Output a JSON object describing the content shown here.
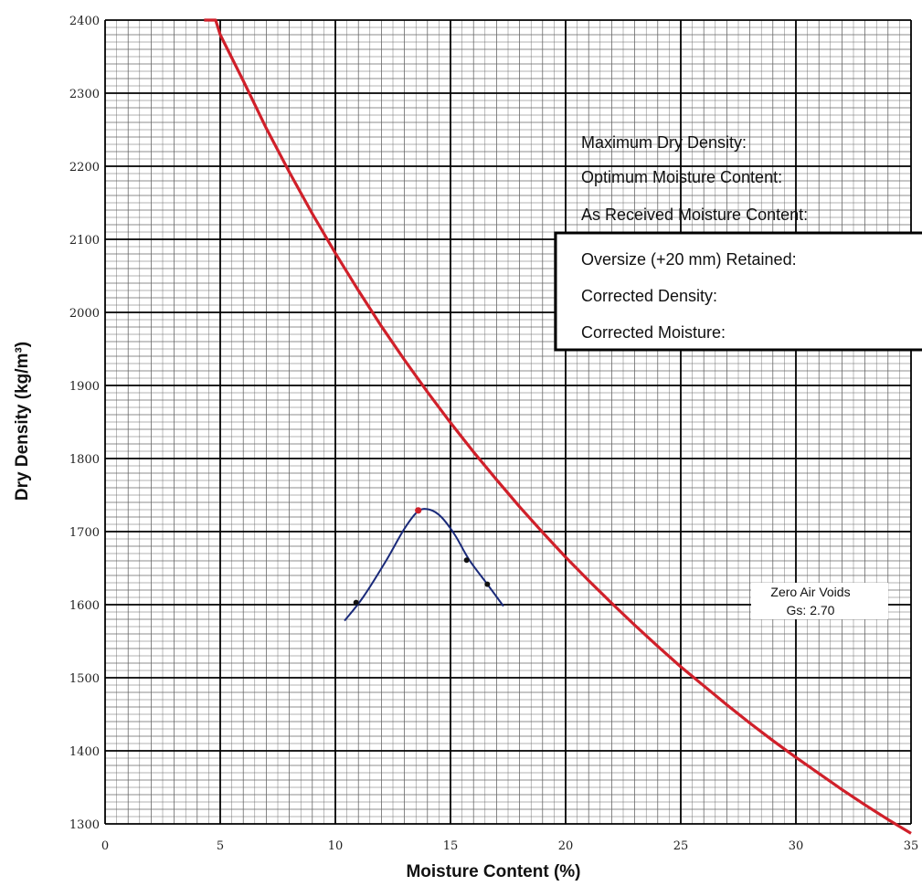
{
  "chart_data": {
    "type": "line",
    "xlabel": "Moisture Content (%)",
    "ylabel": "Dry Density (kg/m³)",
    "xlim": [
      0,
      35
    ],
    "ylim": [
      1300,
      2400
    ],
    "x_ticks": [
      "0",
      "5",
      "10",
      "15",
      "20",
      "25",
      "30",
      "35"
    ],
    "y_ticks": [
      "1300",
      "1400",
      "1500",
      "1600",
      "1700",
      "1800",
      "1900",
      "2000",
      "2100",
      "2200",
      "2300",
      "2400"
    ],
    "grid": true,
    "zero_air_voids": {
      "label": "Zero Air Voids",
      "gs_label": "Gs:  2.70",
      "gs": 2.7,
      "color": "#d0202a",
      "x": [
        4.3,
        4.8,
        5,
        6,
        7,
        8,
        9,
        10,
        11,
        12,
        13,
        14,
        15,
        16,
        17,
        18,
        19,
        20,
        21,
        22,
        23,
        24,
        25,
        26,
        27,
        28,
        29,
        30,
        31,
        32,
        33,
        34,
        35
      ],
      "y": [
        2400,
        2400,
        2380,
        2317,
        2252,
        2192,
        2135,
        2081,
        2030,
        1981,
        1935,
        1891,
        1849,
        1809,
        1771,
        1734,
        1699,
        1665,
        1633,
        1602,
        1572,
        1543,
        1515,
        1489,
        1463,
        1438,
        1414,
        1391,
        1369,
        1347,
        1326,
        1306,
        1287
      ]
    },
    "compaction_curve": {
      "color": "#1a2a7a",
      "x": [
        10.4,
        11.2,
        12.2,
        13.0,
        13.6,
        14.1,
        14.6,
        15.2,
        15.8,
        16.6,
        17.3
      ],
      "y": [
        1578,
        1610,
        1660,
        1704,
        1728,
        1730,
        1720,
        1695,
        1662,
        1628,
        1598
      ]
    },
    "test_points": {
      "x": [
        10.9,
        13.6,
        15.7,
        16.6
      ],
      "y": [
        1603,
        1729,
        1661,
        1628
      ]
    },
    "max_point_color": "#d0202a"
  },
  "info_panel": {
    "max_dry_density_label": "Maximum Dry Density:",
    "optimum_moisture_label": "Optimum Moisture Content:",
    "as_received_moisture_label": "As Received Moisture Content:",
    "oversize_label": "Oversize (+20 mm) Retained:",
    "corrected_density_label": "Corrected Density:",
    "corrected_moisture_label": "Corrected Moisture:"
  }
}
